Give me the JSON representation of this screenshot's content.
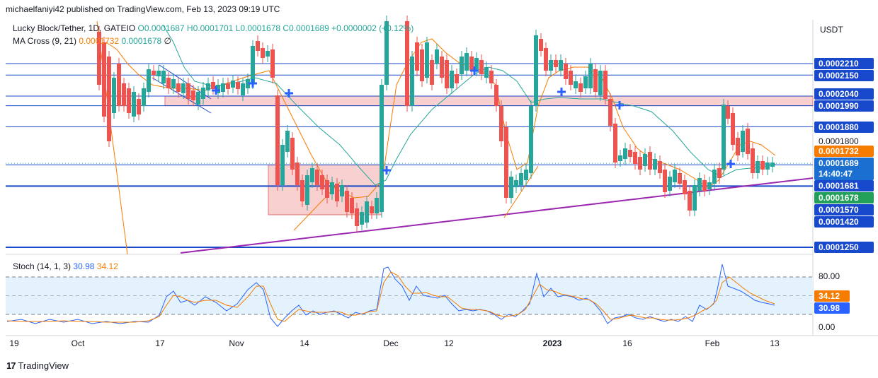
{
  "header": {
    "published": "michaelfaniyi42 published on TradingView.com, Feb 13, 2023 09:19 UTC"
  },
  "legend": {
    "symbol": "Lucky Block/Tether, 1D, GATEIO",
    "ohlc": "O0.0001687 H0.0001701 L0.0001678 C0.0001689 +0.0000002 (+0.12%)",
    "ma_name": "MA Cross (9, 21)",
    "ma_fast": "0.0001732",
    "ma_slow": "0.0001678",
    "ma_extra": "∅",
    "stoch_name": "Stoch (14, 1, 3)",
    "stoch_k": "30.98",
    "stoch_d": "34.12"
  },
  "currency": "USDT",
  "colors": {
    "up": "#26a69a",
    "down": "#ef5350",
    "ma_fast": "#f57c00",
    "ma_slow": "#26a69a",
    "level_line": "#1848cc",
    "trend_line": "#9c27b0",
    "zone_fill": "#f8d0d0",
    "stoch_band": "#e3f2fd",
    "stoch_k": "#2962ff",
    "stoch_d": "#f57c00"
  },
  "price_labels": {
    "p1": "0.0002210",
    "p2": "0.0002150",
    "p3": "0.0002040",
    "p4": "0.0001990",
    "p5": "0.0001880",
    "p6": "0.0001800",
    "p7": "0.0001732",
    "p8": "0.0001689",
    "p8_timer": "14:40:47",
    "p9": "0.0001681",
    "p10": "0.0001678",
    "p11": "0.0001570",
    "p12": "0.0001420",
    "p13": "0.0001250"
  },
  "stoch_labels": {
    "s80": "80.00",
    "sd": "34.12",
    "sk": "30.98",
    "s0": "0.00"
  },
  "x_ticks": [
    "19",
    "Oct",
    "17",
    "Nov",
    "14",
    "Dec",
    "12",
    "2023",
    "16",
    "Feb",
    "13"
  ],
  "brand": "TradingView",
  "chart_data": {
    "type": "candlestick",
    "title": "Lucky Block/Tether, 1D, GATEIO",
    "y_unit": "USDT",
    "horizontal_levels": [
      0.000221,
      0.000215,
      0.000204,
      0.000199,
      0.000188,
      0.000168,
      0.000157,
      0.000125
    ],
    "supply_zone": [
      0.000199,
      0.000204
    ],
    "demand_zone": [
      0.000142,
      0.000168
    ],
    "trendline": "ascending support from late Oct 2022 to Feb 2023",
    "indicators": {
      "ma_cross": {
        "periods": [
          9,
          21
        ],
        "last_fast": 0.0001732,
        "last_slow": 0.0001678
      },
      "stochastic": {
        "params": [
          14,
          1,
          3
        ],
        "k": 30.98,
        "d": 34.12,
        "levels": [
          80,
          20
        ]
      }
    },
    "last_price": 0.0001689,
    "x_ticks": [
      "19",
      "Oct",
      "17",
      "Nov",
      "14",
      "Dec",
      "12",
      "2023",
      "16",
      "Feb",
      "13"
    ]
  }
}
